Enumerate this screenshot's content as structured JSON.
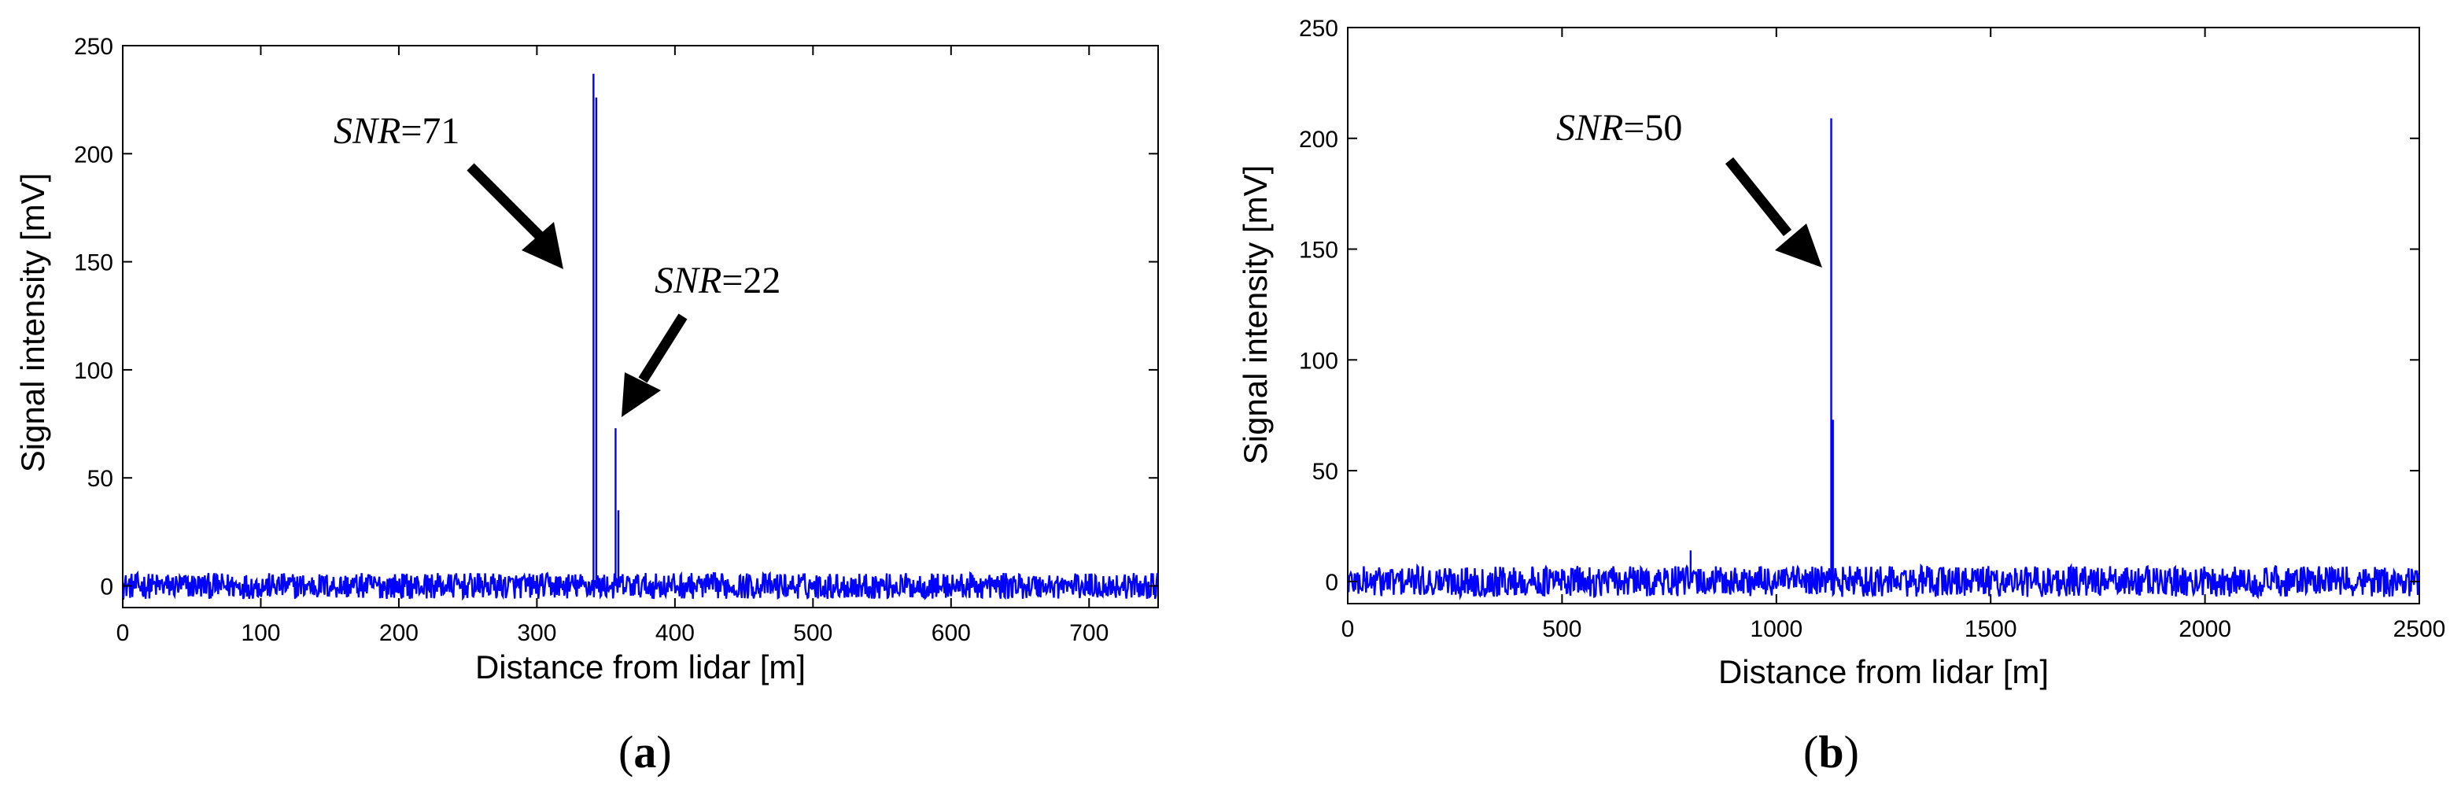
{
  "chart_data": [
    {
      "type": "line",
      "panel_label": "a",
      "xlabel": "Distance from lidar [m]",
      "ylabel": "Signal intensity [mV]",
      "xlim": [
        0,
        750
      ],
      "ylim": [
        -10,
        250
      ],
      "x_ticks": [
        0,
        100,
        200,
        300,
        400,
        500,
        600,
        700
      ],
      "y_ticks": [
        0,
        50,
        100,
        150,
        200,
        250
      ],
      "grid": false,
      "line_color": "#0000ff",
      "noise_amplitude": 6,
      "peaks": [
        {
          "x": 341,
          "y": 237
        },
        {
          "x": 343,
          "y": 226
        },
        {
          "x": 357,
          "y": 73
        },
        {
          "x": 359,
          "y": 35
        }
      ],
      "annotations": [
        {
          "italic": "SNR",
          "rest": "=71",
          "points_to": {
            "x": 341,
            "y": 145
          }
        },
        {
          "italic": "SNR",
          "rest": "=22",
          "points_to": {
            "x": 359,
            "y": 75
          }
        }
      ]
    },
    {
      "type": "line",
      "panel_label": "b",
      "xlabel": "Distance from lidar [m]",
      "ylabel": "Signal intensity [mV]",
      "xlim": [
        0,
        2500
      ],
      "ylim": [
        -10,
        250
      ],
      "x_ticks": [
        0,
        500,
        1000,
        1500,
        2000,
        2500
      ],
      "y_ticks": [
        0,
        50,
        100,
        150,
        200,
        250
      ],
      "grid": false,
      "line_color": "#0000ff",
      "noise_amplitude": 7,
      "peaks": [
        {
          "x": 1128,
          "y": 209
        },
        {
          "x": 1132,
          "y": 73
        },
        {
          "x": 800,
          "y": 14
        }
      ],
      "annotations": [
        {
          "italic": "SNR",
          "rest": "=50",
          "points_to": {
            "x": 1125,
            "y": 145
          }
        }
      ]
    }
  ]
}
